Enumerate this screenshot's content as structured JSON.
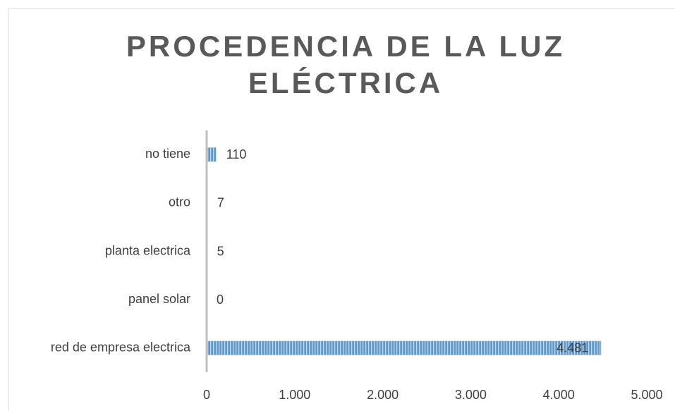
{
  "chart_data": {
    "type": "bar",
    "orientation": "horizontal",
    "title": "PROCEDENCIA DE LA LUZ ELÉCTRICA",
    "categories": [
      "no tiene",
      "otro",
      "planta electrica",
      "panel solar",
      "red de empresa electrica"
    ],
    "values": [
      110,
      7,
      5,
      0,
      4481
    ],
    "value_labels": [
      "110",
      "7",
      "5",
      "0",
      "4.481"
    ],
    "color": "#5b9bd5",
    "xlim": [
      0,
      5000
    ],
    "xticks": [
      0,
      {
        "value": 1000,
        "label": "1.000"
      },
      {
        "value": 2000,
        "label": "2.000"
      },
      {
        "value": 3000,
        "label": "3.000"
      },
      {
        "value": 4000,
        "label": "4.000"
      },
      {
        "value": 5000,
        "label": "5.000"
      }
    ],
    "grid": false
  }
}
